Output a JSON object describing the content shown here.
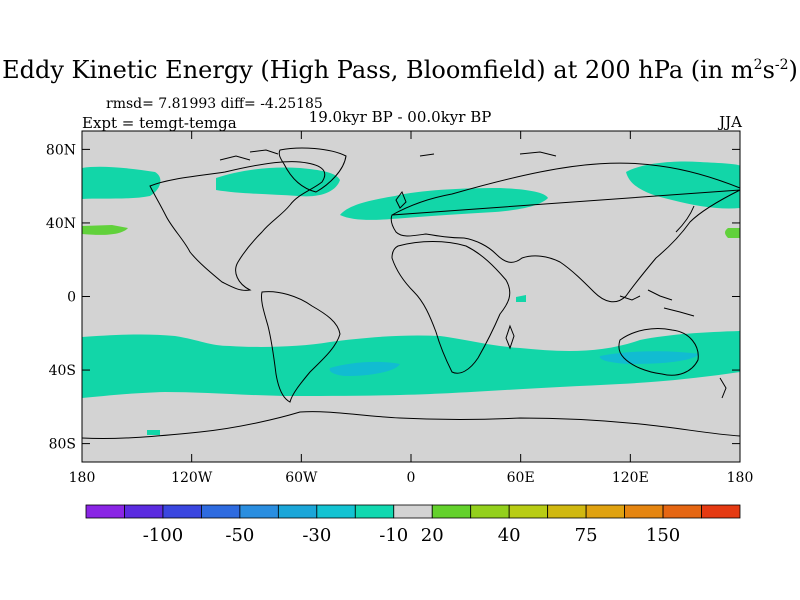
{
  "title": {
    "main": "Eddy Kinetic Energy (High Pass, Bloomfield) at 200 hPa (in m",
    "sup1": "2",
    "mid": "s",
    "sup2": "-2",
    "end": ")"
  },
  "stats": "rmsd= 7.81993 diff= -4.25185",
  "expt": "Expt = temgt-temga",
  "period": "19.0kyr BP - 00.0kyr BP",
  "season": "JJA",
  "axes": {
    "lon_ticks": [
      "180",
      "120W",
      "60W",
      "0",
      "60E",
      "120E",
      "180"
    ],
    "lat_ticks": [
      "80N",
      "40N",
      "0",
      "40S",
      "80S"
    ]
  },
  "colors": {
    "land_ocean": "#d3d3d3",
    "negative_10": "#12d6a8",
    "negative_30": "#11bcd1",
    "positive_20": "#61d13b"
  },
  "colorbar": {
    "colors": [
      "#8a25e5",
      "#5b2be0",
      "#3a46e0",
      "#2e6be0",
      "#2a8ee0",
      "#1ba6d8",
      "#13c3d2",
      "#11d8b0",
      "#d3d3d3",
      "#63d12c",
      "#93d01c",
      "#b8cc14",
      "#d0b810",
      "#e0a210",
      "#e58510",
      "#e56612",
      "#e53a12"
    ],
    "labels": [
      "-100",
      "-50",
      "-30",
      "-10",
      "20",
      "40",
      "75",
      "150"
    ]
  }
}
